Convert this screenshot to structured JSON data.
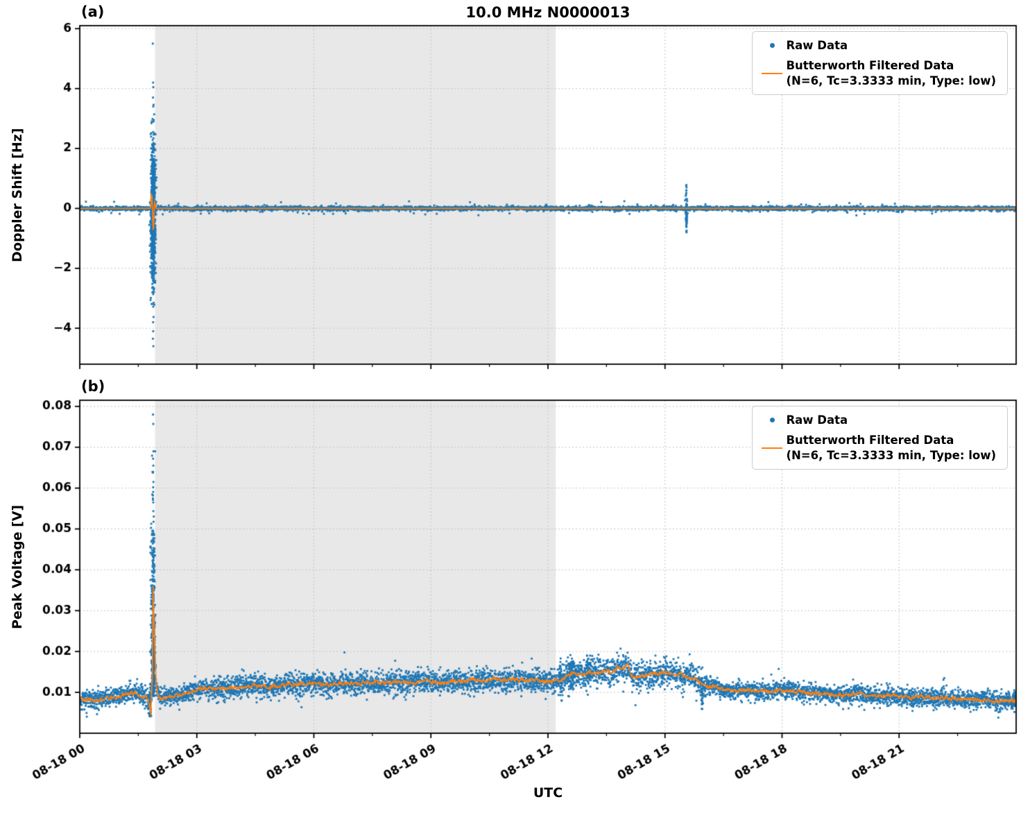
{
  "figure": {
    "title": "10.0 MHz N0000013",
    "xlabel": "UTC",
    "panels": [
      {
        "panel_label": "(a)",
        "ylabel": "Doppler Shift [Hz]"
      },
      {
        "panel_label": "(b)",
        "ylabel": "Peak Voltage [V]"
      }
    ],
    "legend": {
      "raw_label": "Raw Data",
      "filtered_label_line1": "Butterworth Filtered Data",
      "filtered_label_line2": "(N=6, Tc=3.3333 min, Type: low)"
    }
  },
  "colors": {
    "raw": "#1f77b4",
    "filtered": "#ff7f0e",
    "shade": "#e8e8e8",
    "grid": "#c4c4c4",
    "axis": "#000000",
    "text": "#000000"
  },
  "chart_data": [
    {
      "type": "scatter",
      "panel": "a",
      "title": "10.0 MHz N0000013",
      "ylabel": "Doppler Shift [Hz]",
      "xlabel": "",
      "ylim": [
        -5.2,
        6.1
      ],
      "yticks": [
        6,
        4,
        2,
        0,
        -2,
        -4
      ],
      "ytick_labels": [
        "6",
        "4",
        "2",
        "0",
        "−2",
        "−4"
      ],
      "x_hours": [
        0,
        24
      ],
      "xticks_hours": [
        0,
        3,
        6,
        9,
        12,
        15,
        18,
        21
      ],
      "xtick_labels": [
        "08-18 00",
        "08-18 03",
        "08-18 06",
        "08-18 09",
        "08-18 12",
        "08-18 15",
        "08-18 18",
        "08-18 21"
      ],
      "show_xtick_labels": false,
      "grid": true,
      "legend": [
        "Raw Data",
        "Butterworth Filtered Data (N=6, Tc=3.3333 min, Type: low)"
      ],
      "legend_position": "upper right",
      "shaded_region_hours": [
        1.93,
        12.2
      ],
      "seed": 7,
      "series": [
        {
          "name": "Raw Data",
          "kind": "scatter",
          "baseline": 0,
          "n_base": 5200,
          "noise_sigma": 0.034,
          "tail_prob": 0.03,
          "tail_mult": 2.2,
          "outlier_prob": 0.005,
          "outlier_range": [
            0.08,
            0.24
          ],
          "bursts": [
            {
              "t": 1.88,
              "t_sigma": 0.03,
              "n": 800,
              "y_base": 0,
              "y_sigma": 1.15,
              "y_min": -4.7,
              "y_max": 5.6
            },
            {
              "t": 15.55,
              "t_sigma": 0.015,
              "n": 55,
              "y_base": 0,
              "y_sigma": 0.4,
              "y_min": -0.85,
              "y_max": 0.8
            }
          ],
          "extra_points": [
            [
              1.872,
              5.5
            ],
            [
              1.88,
              4.2
            ],
            [
              1.884,
              4.05
            ],
            [
              1.878,
              3.7
            ],
            [
              1.883,
              3.4
            ],
            [
              1.886,
              -4.6
            ],
            [
              1.875,
              -4.35
            ],
            [
              1.882,
              -4.1
            ],
            [
              1.879,
              -3.8
            ],
            [
              15.55,
              0.78
            ],
            [
              15.553,
              -0.8
            ],
            [
              15.548,
              0.6
            ],
            [
              15.551,
              -0.62
            ]
          ]
        },
        {
          "name": "Butterworth Filtered Data (N=6, Tc=3.3333 min, Type: low)",
          "kind": "line",
          "baseline": 0,
          "jitter": 0.006,
          "features": [
            {
              "t": 1.845,
              "amp": 0.5,
              "width": 0.018
            },
            {
              "t": 1.885,
              "amp": -0.75,
              "width": 0.02
            },
            {
              "t": 1.92,
              "amp": 0.25,
              "width": 0.02
            }
          ]
        }
      ]
    },
    {
      "type": "scatter",
      "panel": "b",
      "title": "",
      "ylabel": "Peak Voltage [V]",
      "xlabel": "UTC",
      "ylim": [
        0,
        0.0815
      ],
      "yticks": [
        0.08,
        0.07,
        0.06,
        0.05,
        0.04,
        0.03,
        0.02,
        0.01
      ],
      "ytick_labels": [
        "0.08",
        "0.07",
        "0.06",
        "0.05",
        "0.04",
        "0.03",
        "0.02",
        "0.01"
      ],
      "x_hours": [
        0,
        24
      ],
      "xticks_hours": [
        0,
        3,
        6,
        9,
        12,
        15,
        18,
        21
      ],
      "xtick_labels": [
        "08-18 00",
        "08-18 03",
        "08-18 06",
        "08-18 09",
        "08-18 12",
        "08-18 15",
        "08-18 18",
        "08-18 21"
      ],
      "show_xtick_labels": true,
      "grid": true,
      "legend": [
        "Raw Data",
        "Butterworth Filtered Data (N=6, Tc=3.3333 min, Type: low)"
      ],
      "legend_position": "upper right",
      "shaded_region_hours": [
        1.93,
        12.2
      ],
      "seed": 11,
      "series": [
        {
          "name": "Raw Data",
          "kind": "scatter",
          "follows_line": true,
          "n_base": 6200,
          "noise_sigma": 0.0011,
          "streak_prob": 0.01,
          "streak_amp": 0.004,
          "widen": [
            {
              "range": [
                3.5,
                12.3
              ],
              "factor": 1.25
            },
            {
              "range": [
                12.35,
                16.0
              ],
              "factor": 1.5
            }
          ],
          "bursts": [
            {
              "t": 1.88,
              "t_sigma": 0.025,
              "n": 400,
              "y_base": 0.009,
              "y_sigma": 0.021,
              "half": true,
              "y_min": 0.0045,
              "y_max": 0.069
            },
            {
              "t": 1.8,
              "t_sigma": 0.02,
              "n": 40,
              "y_base": 0.0075,
              "y_sigma": 0.002,
              "y_min": 0.0042,
              "y_max": 0.012
            },
            {
              "t": 12.32,
              "t_sigma": 0.015,
              "n": 30,
              "y_base": 0.013,
              "y_sigma": 0.003,
              "y_min": 0.008,
              "y_max": 0.0195
            },
            {
              "t": 12.6,
              "t_sigma": 0.06,
              "n": 80,
              "y_base": 0.0145,
              "y_sigma": 0.002,
              "y_min": 0.009,
              "y_max": 0.0195
            },
            {
              "t": 13.05,
              "t_sigma": 0.04,
              "n": 40,
              "y_base": 0.016,
              "y_sigma": 0.0015,
              "y_min": 0.012,
              "y_max": 0.019
            },
            {
              "t": 15.95,
              "t_sigma": 0.012,
              "n": 22,
              "y_base": 0.008,
              "y_sigma": 0.002,
              "y_min": 0.0045,
              "y_max": 0.012
            },
            {
              "t": 21.35,
              "t_sigma": 0.012,
              "n": 20,
              "y_base": 0.0075,
              "y_sigma": 0.0015,
              "y_min": 0.0048,
              "y_max": 0.01
            },
            {
              "t": 23.95,
              "t_sigma": 0.01,
              "n": 14,
              "y_base": 0.008,
              "y_sigma": 0.0015,
              "y_min": 0.0052,
              "y_max": 0.0105
            }
          ],
          "extra_points": [
            [
              1.877,
              0.078
            ],
            [
              1.883,
              0.0757
            ],
            [
              1.879,
              0.0672
            ],
            [
              1.885,
              0.0655
            ],
            [
              1.873,
              0.0638
            ],
            [
              1.887,
              0.0615
            ],
            [
              1.881,
              0.0602
            ],
            [
              1.876,
              0.0582
            ],
            [
              1.884,
              0.0565
            ]
          ]
        },
        {
          "name": "Butterworth Filtered Data (N=6, Tc=3.3333 min, Type: low)",
          "kind": "line",
          "jitter": 0.0005,
          "control_points": [
            [
              0,
              0.0085
            ],
            [
              0.3,
              0.008
            ],
            [
              0.7,
              0.0083
            ],
            [
              1.0,
              0.009
            ],
            [
              1.3,
              0.01
            ],
            [
              1.5,
              0.0095
            ],
            [
              1.7,
              0.0088
            ],
            [
              1.78,
              0.0075
            ],
            [
              1.82,
              0.005
            ],
            [
              1.86,
              0.014
            ],
            [
              1.88,
              0.036
            ],
            [
              1.92,
              0.022
            ],
            [
              1.96,
              0.012
            ],
            [
              2.02,
              0.009
            ],
            [
              2.1,
              0.0085
            ],
            [
              2.3,
              0.009
            ],
            [
              2.6,
              0.0092
            ],
            [
              2.9,
              0.0105
            ],
            [
              3.2,
              0.0112
            ],
            [
              3.6,
              0.0108
            ],
            [
              4.0,
              0.0112
            ],
            [
              4.4,
              0.0118
            ],
            [
              4.8,
              0.0112
            ],
            [
              5.2,
              0.0118
            ],
            [
              5.6,
              0.0122
            ],
            [
              6.0,
              0.0122
            ],
            [
              6.4,
              0.0118
            ],
            [
              6.8,
              0.0124
            ],
            [
              7.2,
              0.0121
            ],
            [
              7.6,
              0.0125
            ],
            [
              8.0,
              0.0124
            ],
            [
              8.4,
              0.0122
            ],
            [
              8.8,
              0.0128
            ],
            [
              9.2,
              0.0124
            ],
            [
              9.6,
              0.0127
            ],
            [
              10.0,
              0.0129
            ],
            [
              10.4,
              0.0131
            ],
            [
              10.8,
              0.0129
            ],
            [
              11.2,
              0.0132
            ],
            [
              11.6,
              0.0129
            ],
            [
              12.0,
              0.0127
            ],
            [
              12.35,
              0.013
            ],
            [
              12.6,
              0.0147
            ],
            [
              12.9,
              0.0145
            ],
            [
              13.2,
              0.0148
            ],
            [
              13.6,
              0.0153
            ],
            [
              13.9,
              0.016
            ],
            [
              14.05,
              0.0163
            ],
            [
              14.15,
              0.0137
            ],
            [
              14.4,
              0.014
            ],
            [
              14.7,
              0.0144
            ],
            [
              15.0,
              0.0147
            ],
            [
              15.3,
              0.0146
            ],
            [
              15.6,
              0.0139
            ],
            [
              15.85,
              0.0128
            ],
            [
              16.0,
              0.0115
            ],
            [
              16.2,
              0.0117
            ],
            [
              16.5,
              0.0106
            ],
            [
              16.8,
              0.0103
            ],
            [
              17.1,
              0.0106
            ],
            [
              17.5,
              0.0102
            ],
            [
              17.9,
              0.0105
            ],
            [
              18.3,
              0.0104
            ],
            [
              18.7,
              0.0099
            ],
            [
              19.1,
              0.0096
            ],
            [
              19.5,
              0.0094
            ],
            [
              19.9,
              0.0095
            ],
            [
              20.3,
              0.0091
            ],
            [
              20.7,
              0.0092
            ],
            [
              21.1,
              0.009
            ],
            [
              21.35,
              0.0084
            ],
            [
              21.6,
              0.0089
            ],
            [
              22.0,
              0.0087
            ],
            [
              22.4,
              0.0086
            ],
            [
              22.8,
              0.0081
            ],
            [
              23.2,
              0.0082
            ],
            [
              23.6,
              0.008
            ],
            [
              24,
              0.0079
            ]
          ]
        }
      ]
    }
  ]
}
